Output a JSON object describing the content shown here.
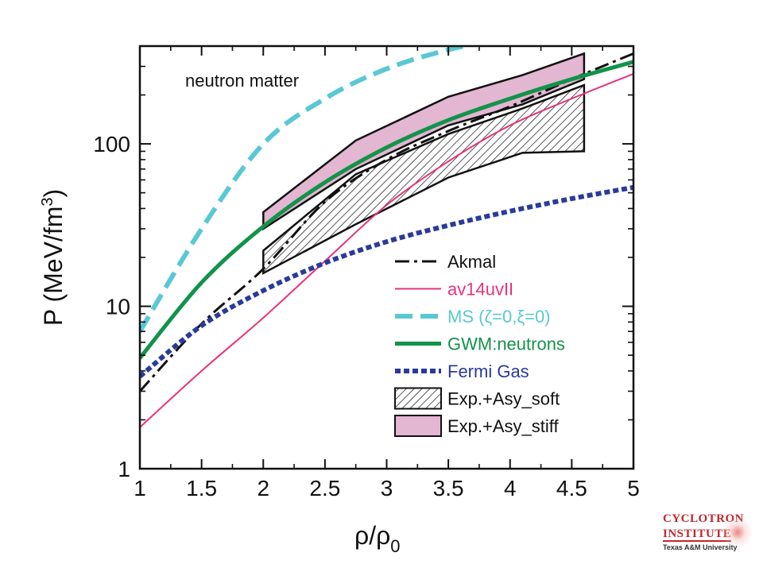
{
  "chart_data": {
    "type": "line",
    "annotation": "neutron matter",
    "xlabel": "ρ/ρ",
    "xlabel_sub": "0",
    "ylabel": "P (MeV/fm",
    "ylabel_sup": "3",
    "ylabel_end": ")",
    "xlim": [
      1,
      5
    ],
    "ylim": [
      1,
      400
    ],
    "yscale": "log",
    "x_ticks": [
      "1",
      "1.5",
      "2",
      "2.5",
      "3",
      "3.5",
      "4",
      "4.5",
      "5"
    ],
    "x_tick_values": [
      1,
      1.5,
      2,
      2.5,
      3,
      3.5,
      4,
      4.5,
      5
    ],
    "y_ticks": [
      "1",
      "10",
      "100"
    ],
    "y_tick_values": [
      1,
      10,
      100
    ],
    "legend_position": "bottom-right",
    "series": [
      {
        "name": "Akmal",
        "color": "#111111",
        "style": "dashdot",
        "width": 3,
        "x": [
          1.0,
          1.5,
          2.0,
          2.5,
          3.0,
          3.5,
          4.0,
          4.5,
          5.0
        ],
        "y": [
          3.0,
          7.8,
          17,
          44,
          80,
          120,
          170,
          250,
          360
        ]
      },
      {
        "name": "av14uvII",
        "color": "#e8327c",
        "style": "solid",
        "width": 2,
        "x": [
          1.0,
          1.5,
          2.0,
          2.5,
          3.0,
          3.5,
          4.0,
          4.5,
          5.0
        ],
        "y": [
          1.8,
          4.0,
          8.5,
          19,
          42,
          78,
          130,
          190,
          270
        ]
      },
      {
        "name": "MS (ζ=0,ξ=0)",
        "color": "#5ac8d4",
        "style": "dashed",
        "width": 6,
        "x": [
          1.0,
          1.5,
          2.0,
          2.5,
          3.0,
          3.5,
          3.85
        ],
        "y": [
          7.0,
          30,
          100,
          190,
          290,
          380,
          430
        ]
      },
      {
        "name": "GWM:neutrons",
        "color": "#12934a",
        "style": "solid",
        "width": 5,
        "x": [
          1.0,
          1.5,
          2.0,
          2.5,
          3.0,
          3.5,
          4.0,
          4.5,
          5.0
        ],
        "y": [
          4.8,
          14,
          31,
          58,
          95,
          140,
          190,
          250,
          320
        ]
      },
      {
        "name": "Fermi Gas",
        "color": "#2a3a9c",
        "style": "dotted",
        "width": 6,
        "x": [
          1.0,
          1.5,
          2.0,
          2.5,
          3.0,
          3.5,
          4.0,
          4.5,
          5.0
        ],
        "y": [
          3.7,
          7.6,
          12.5,
          18.5,
          25,
          31.5,
          38.5,
          46,
          54
        ]
      }
    ],
    "bands": [
      {
        "name": "Exp.+Asy_soft",
        "fill": "hatch",
        "stroke": "#111111",
        "x": [
          2.0,
          2.75,
          3.5,
          4.1,
          4.6
        ],
        "y_low": [
          16,
          32,
          62,
          88,
          90
        ],
        "y_high": [
          22,
          65,
          115,
          165,
          230
        ]
      },
      {
        "name": "Exp.+Asy_stiff",
        "fill": "#e3b6d1",
        "stroke": "#111111",
        "x": [
          2.0,
          2.75,
          3.5,
          4.1,
          4.6
        ],
        "y_low": [
          30,
          70,
          130,
          175,
          250
        ],
        "y_high": [
          38,
          105,
          195,
          265,
          360
        ]
      }
    ]
  },
  "logo": {
    "line1": "CYCLOTRON",
    "line2": "INSTITUTE",
    "line3": "Texas A&M University"
  }
}
